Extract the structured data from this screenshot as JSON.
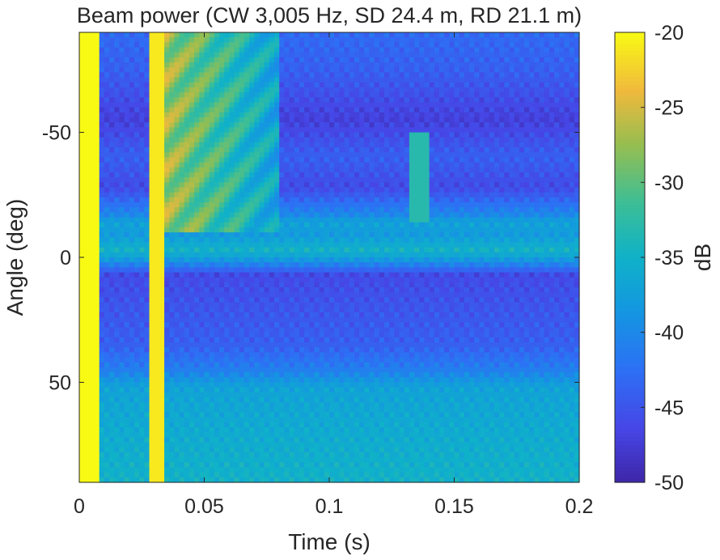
{
  "chart_data": {
    "type": "heatmap",
    "title": "Beam power (CW 3,005 Hz, SD 24.4 m, RD 21.1 m)",
    "xlabel": "Time (s)",
    "ylabel": "Angle (deg)",
    "xlim": [
      0,
      0.2
    ],
    "ylim": [
      -90,
      90
    ],
    "y_direction": "reversed",
    "xticks": [
      0,
      0.05,
      0.1,
      0.15,
      0.2
    ],
    "xtick_labels": [
      "0",
      "0.05",
      "0.1",
      "0.15",
      "0.2"
    ],
    "yticks": [
      -50,
      0,
      50
    ],
    "ytick_labels": [
      "-50",
      "0",
      "50"
    ],
    "colormap": "parula",
    "colorbar": {
      "label": "dB",
      "range": [
        -50,
        -20
      ],
      "ticks": [
        -20,
        -25,
        -30,
        -35,
        -40,
        -45,
        -50
      ],
      "tick_labels": [
        "-20",
        "-25",
        "-30",
        "-35",
        "-40",
        "-45",
        "-50"
      ]
    },
    "features": [
      {
        "desc": "direct arrival",
        "time_range": [
          0.0,
          0.008
        ],
        "angle_range": [
          -90,
          90
        ],
        "level_db": -20
      },
      {
        "desc": "bottom/surface multipath arrival",
        "time_range": [
          0.029,
          0.034
        ],
        "angle_range": [
          -90,
          90
        ],
        "level_db": -21
      },
      {
        "desc": "decaying multipath arcs",
        "time_range": [
          0.034,
          0.08
        ],
        "angle_range": [
          -90,
          -10
        ],
        "level_db": -27
      },
      {
        "desc": "late arrival",
        "time_range": [
          0.133,
          0.14
        ],
        "angle_range": [
          -50,
          -15
        ],
        "level_db": -33
      }
    ],
    "angle_profile_db": [
      {
        "angle": -90,
        "db": -43
      },
      {
        "angle": -75,
        "db": -44
      },
      {
        "angle": -55,
        "db": -47
      },
      {
        "angle": -40,
        "db": -44
      },
      {
        "angle": -28,
        "db": -46
      },
      {
        "angle": -17,
        "db": -40
      },
      {
        "angle": -14,
        "db": -37
      },
      {
        "angle": -9,
        "db": -38
      },
      {
        "angle": -3,
        "db": -35
      },
      {
        "angle": 0,
        "db": -37
      },
      {
        "angle": 7,
        "db": -46
      },
      {
        "angle": 20,
        "db": -45
      },
      {
        "angle": 35,
        "db": -44
      },
      {
        "angle": 45,
        "db": -41
      },
      {
        "angle": 52,
        "db": -37
      },
      {
        "angle": 70,
        "db": -36
      },
      {
        "angle": 90,
        "db": -35
      }
    ]
  }
}
